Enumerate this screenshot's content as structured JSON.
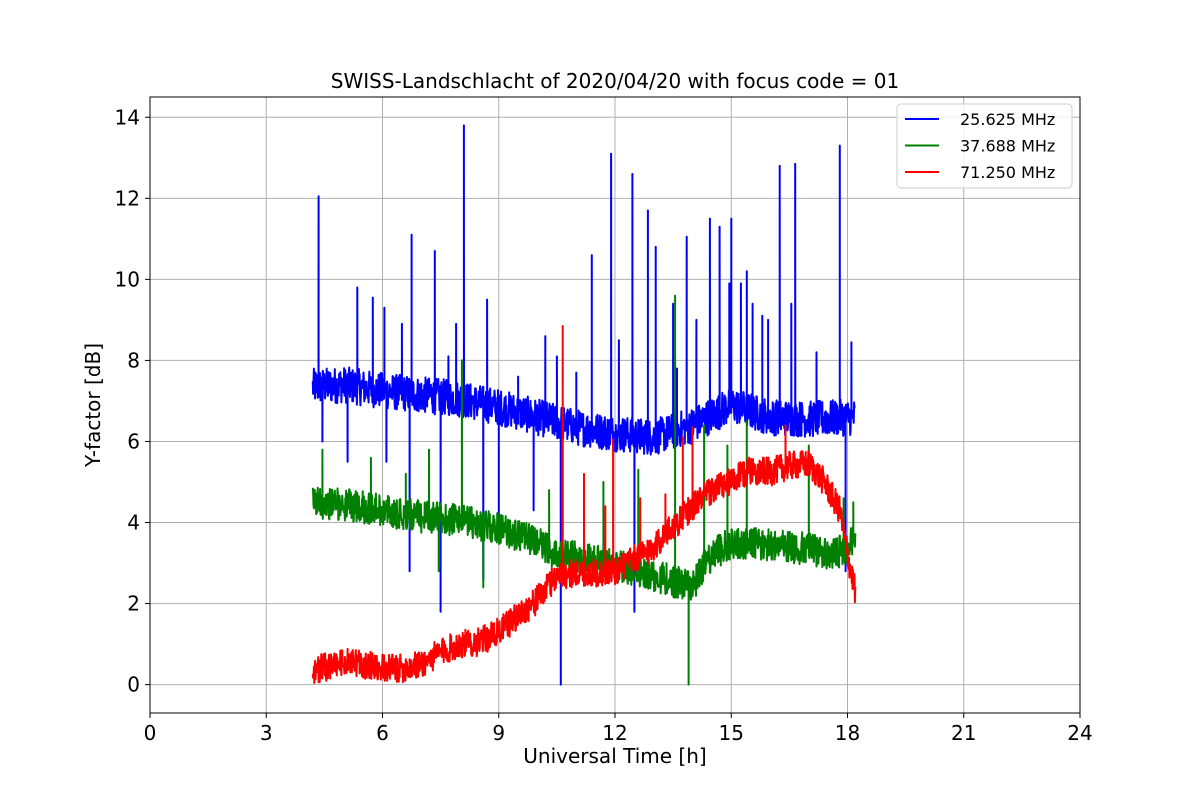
{
  "chart_data": {
    "type": "line",
    "title": "SWISS-Landschlacht of 2020/04/20 with focus code = 01",
    "xlabel": "Universal Time [h]",
    "ylabel": "Y-factor [dB]",
    "xlim": [
      0,
      24
    ],
    "ylim": [
      -0.7,
      14.5
    ],
    "xticks": [
      0,
      3,
      6,
      9,
      12,
      15,
      18,
      21,
      24
    ],
    "yticks": [
      0,
      2,
      4,
      6,
      8,
      10,
      12,
      14
    ],
    "grid": true,
    "legend_position": "top-right",
    "series": [
      {
        "name": "25.625 MHz",
        "color": "#0000ff",
        "base": [
          [
            4.2,
            7.35
          ],
          [
            5,
            7.4
          ],
          [
            6,
            7.25
          ],
          [
            7,
            7.15
          ],
          [
            8,
            7.05
          ],
          [
            9,
            6.85
          ],
          [
            10,
            6.6
          ],
          [
            11,
            6.35
          ],
          [
            12,
            6.2
          ],
          [
            13,
            6.1
          ],
          [
            14,
            6.4
          ],
          [
            15,
            6.9
          ],
          [
            15.5,
            6.75
          ],
          [
            16,
            6.6
          ],
          [
            17,
            6.55
          ],
          [
            18.2,
            6.6
          ]
        ],
        "noise": 0.45,
        "spikes": [
          [
            4.35,
            12.05
          ],
          [
            4.45,
            6.0
          ],
          [
            5.1,
            5.5
          ],
          [
            5.35,
            9.8
          ],
          [
            5.75,
            9.55
          ],
          [
            6.05,
            9.3
          ],
          [
            6.1,
            5.5
          ],
          [
            6.5,
            8.9
          ],
          [
            6.7,
            2.8
          ],
          [
            6.75,
            11.1
          ],
          [
            7.25,
            7.4
          ],
          [
            7.35,
            10.7
          ],
          [
            7.5,
            1.8
          ],
          [
            7.7,
            8.1
          ],
          [
            7.9,
            8.9
          ],
          [
            8.1,
            13.8
          ],
          [
            8.6,
            2.6
          ],
          [
            8.7,
            9.5
          ],
          [
            9.0,
            3.8
          ],
          [
            9.5,
            7.6
          ],
          [
            9.9,
            4.3
          ],
          [
            10.2,
            8.6
          ],
          [
            10.5,
            8.1
          ],
          [
            10.6,
            0.0
          ],
          [
            11.0,
            7.7
          ],
          [
            11.4,
            10.6
          ],
          [
            11.9,
            13.1
          ],
          [
            12.1,
            8.5
          ],
          [
            12.45,
            12.6
          ],
          [
            12.5,
            1.8
          ],
          [
            12.85,
            11.7
          ],
          [
            13.05,
            10.8
          ],
          [
            13.5,
            9.4
          ],
          [
            13.6,
            7.8
          ],
          [
            13.85,
            11.05
          ],
          [
            14.1,
            9.0
          ],
          [
            14.45,
            11.5
          ],
          [
            14.7,
            11.3
          ],
          [
            14.95,
            9.9
          ],
          [
            15.0,
            11.5
          ],
          [
            15.25,
            9.9
          ],
          [
            15.4,
            10.2
          ],
          [
            15.55,
            9.4
          ],
          [
            15.8,
            9.1
          ],
          [
            15.95,
            9.0
          ],
          [
            16.25,
            12.8
          ],
          [
            16.55,
            9.4
          ],
          [
            16.65,
            12.85
          ],
          [
            17.2,
            8.2
          ],
          [
            17.8,
            13.3
          ],
          [
            17.95,
            2.8
          ],
          [
            18.1,
            8.45
          ]
        ]
      },
      {
        "name": "37.688 MHz",
        "color": "#008000",
        "base": [
          [
            4.2,
            4.5
          ],
          [
            5,
            4.45
          ],
          [
            6,
            4.3
          ],
          [
            7,
            4.15
          ],
          [
            8,
            4.05
          ],
          [
            9,
            3.85
          ],
          [
            10,
            3.5
          ],
          [
            10.5,
            3.2
          ],
          [
            11,
            3.15
          ],
          [
            12,
            2.95
          ],
          [
            13,
            2.7
          ],
          [
            13.5,
            2.55
          ],
          [
            14,
            2.45
          ],
          [
            14.5,
            3.2
          ],
          [
            15,
            3.5
          ],
          [
            16,
            3.45
          ],
          [
            17,
            3.35
          ],
          [
            17.6,
            3.2
          ],
          [
            18,
            3.4
          ],
          [
            18.2,
            3.6
          ]
        ],
        "noise": 0.4,
        "spikes": [
          [
            4.45,
            5.8
          ],
          [
            5.7,
            5.6
          ],
          [
            6.6,
            5.2
          ],
          [
            7.2,
            5.8
          ],
          [
            7.45,
            2.8
          ],
          [
            8.05,
            8.0
          ],
          [
            8.6,
            2.4
          ],
          [
            9.3,
            3.5
          ],
          [
            10.3,
            4.8
          ],
          [
            11.7,
            5.0
          ],
          [
            12.6,
            5.3
          ],
          [
            13.55,
            9.6
          ],
          [
            13.9,
            0.0
          ],
          [
            14.3,
            6.4
          ],
          [
            14.9,
            5.9
          ],
          [
            15.4,
            6.5
          ],
          [
            17.0,
            5.9
          ],
          [
            17.9,
            4.6
          ],
          [
            18.15,
            4.5
          ]
        ]
      },
      {
        "name": "71.250 MHz",
        "color": "#ff0000",
        "base": [
          [
            4.2,
            0.35
          ],
          [
            5,
            0.55
          ],
          [
            5.5,
            0.5
          ],
          [
            6,
            0.4
          ],
          [
            6.5,
            0.4
          ],
          [
            7,
            0.5
          ],
          [
            7.5,
            0.8
          ],
          [
            8,
            1.0
          ],
          [
            8.5,
            1.05
          ],
          [
            9,
            1.3
          ],
          [
            9.5,
            1.7
          ],
          [
            10,
            2.1
          ],
          [
            10.5,
            2.7
          ],
          [
            11,
            2.75
          ],
          [
            11.5,
            2.75
          ],
          [
            12,
            2.8
          ],
          [
            12.5,
            3.1
          ],
          [
            13,
            3.4
          ],
          [
            13.5,
            3.9
          ],
          [
            14,
            4.4
          ],
          [
            14.5,
            4.8
          ],
          [
            15,
            5.0
          ],
          [
            15.5,
            5.3
          ],
          [
            16,
            5.25
          ],
          [
            16.5,
            5.4
          ],
          [
            17,
            5.45
          ],
          [
            17.4,
            5.0
          ],
          [
            17.8,
            4.3
          ],
          [
            18.0,
            3.2
          ],
          [
            18.2,
            2.3
          ]
        ],
        "noise": 0.35,
        "spikes": [
          [
            10.65,
            8.85
          ],
          [
            11.2,
            5.2
          ],
          [
            11.75,
            4.4
          ],
          [
            11.95,
            6.05
          ],
          [
            12.65,
            4.6
          ],
          [
            13.3,
            4.7
          ],
          [
            13.75,
            6.1
          ],
          [
            14.0,
            6.35
          ],
          [
            16.4,
            6.4
          ]
        ]
      }
    ]
  }
}
